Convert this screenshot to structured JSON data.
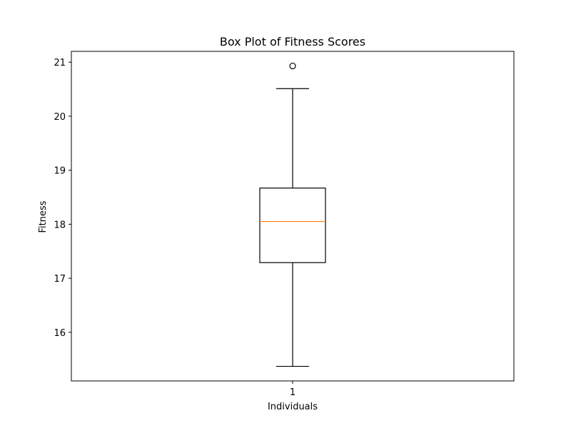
{
  "chart_data": {
    "type": "box",
    "title": "Box Plot of Fitness Scores",
    "xlabel": "Individuals",
    "ylabel": "Fitness",
    "categories": [
      "1"
    ],
    "ylim": [
      15.1,
      21.2
    ],
    "yticks": [
      16,
      17,
      18,
      19,
      20,
      21
    ],
    "ytick_labels": [
      "16",
      "17",
      "18",
      "19",
      "20",
      "21"
    ],
    "grid": false,
    "boxes": [
      {
        "category": "1",
        "whisker_low": 15.37,
        "q1": 17.29,
        "median": 18.05,
        "q3": 18.67,
        "whisker_high": 20.51,
        "outliers": [
          20.93
        ]
      }
    ],
    "colors": {
      "box": "#000000",
      "median": "#ff7f0e",
      "axes": "#000000",
      "background": "#ffffff"
    }
  }
}
